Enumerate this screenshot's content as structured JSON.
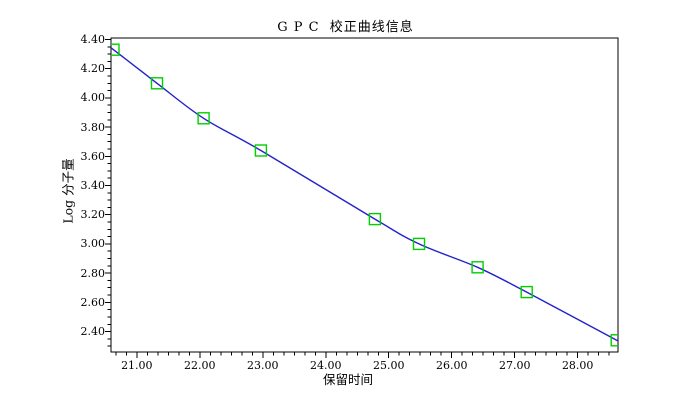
{
  "title": "G P C  校正曲线信息",
  "chart_data": {
    "type": "scatter",
    "title": "G P C  校正曲线信息",
    "xlabel": "保留时间",
    "ylabel": "Log 分子量",
    "xlim": [
      20.59,
      28.64
    ],
    "ylim": [
      2.26,
      4.41
    ],
    "grid": false,
    "legend": "none",
    "x_major_ticks": [
      21,
      22,
      23,
      24,
      25,
      26,
      27,
      28
    ],
    "x_tick_labels": [
      "21.00",
      "22.00",
      "23.00",
      "24.00",
      "25.00",
      "26.00",
      "27.00",
      "28.00"
    ],
    "y_major_ticks": [
      4.4,
      4.2,
      4.0,
      3.8,
      3.6,
      3.4,
      3.2,
      3.0,
      2.8,
      2.6,
      2.4
    ],
    "y_tick_labels": [
      "4.40",
      "4.20",
      "4.00",
      "3.80",
      "3.60",
      "3.40",
      "3.20",
      "3.00",
      "2.80",
      "2.60",
      "2.40"
    ],
    "x_minor_divisions_per_major": 6,
    "y_minor_step": 0.05,
    "series": [
      {
        "name": "calibration-standards",
        "type": "scatter",
        "marker": "open-square",
        "color": "#00d000",
        "points": [
          [
            20.63,
            4.33
          ],
          [
            21.32,
            4.1
          ],
          [
            22.06,
            3.86
          ],
          [
            22.97,
            3.64
          ],
          [
            24.78,
            3.17
          ],
          [
            25.48,
            3.0
          ],
          [
            26.41,
            2.84
          ],
          [
            27.19,
            2.67
          ],
          [
            28.62,
            2.34
          ]
        ]
      },
      {
        "name": "fitted-calibration-curve",
        "type": "line",
        "color": "#2222cc",
        "note": "smooth curve through the standard points, spanning full x range"
      }
    ]
  },
  "colors": {
    "background": "#ffffff",
    "axis": "#000000",
    "text": "#000000",
    "curve": "#2222cc",
    "marker": "#00d000"
  }
}
